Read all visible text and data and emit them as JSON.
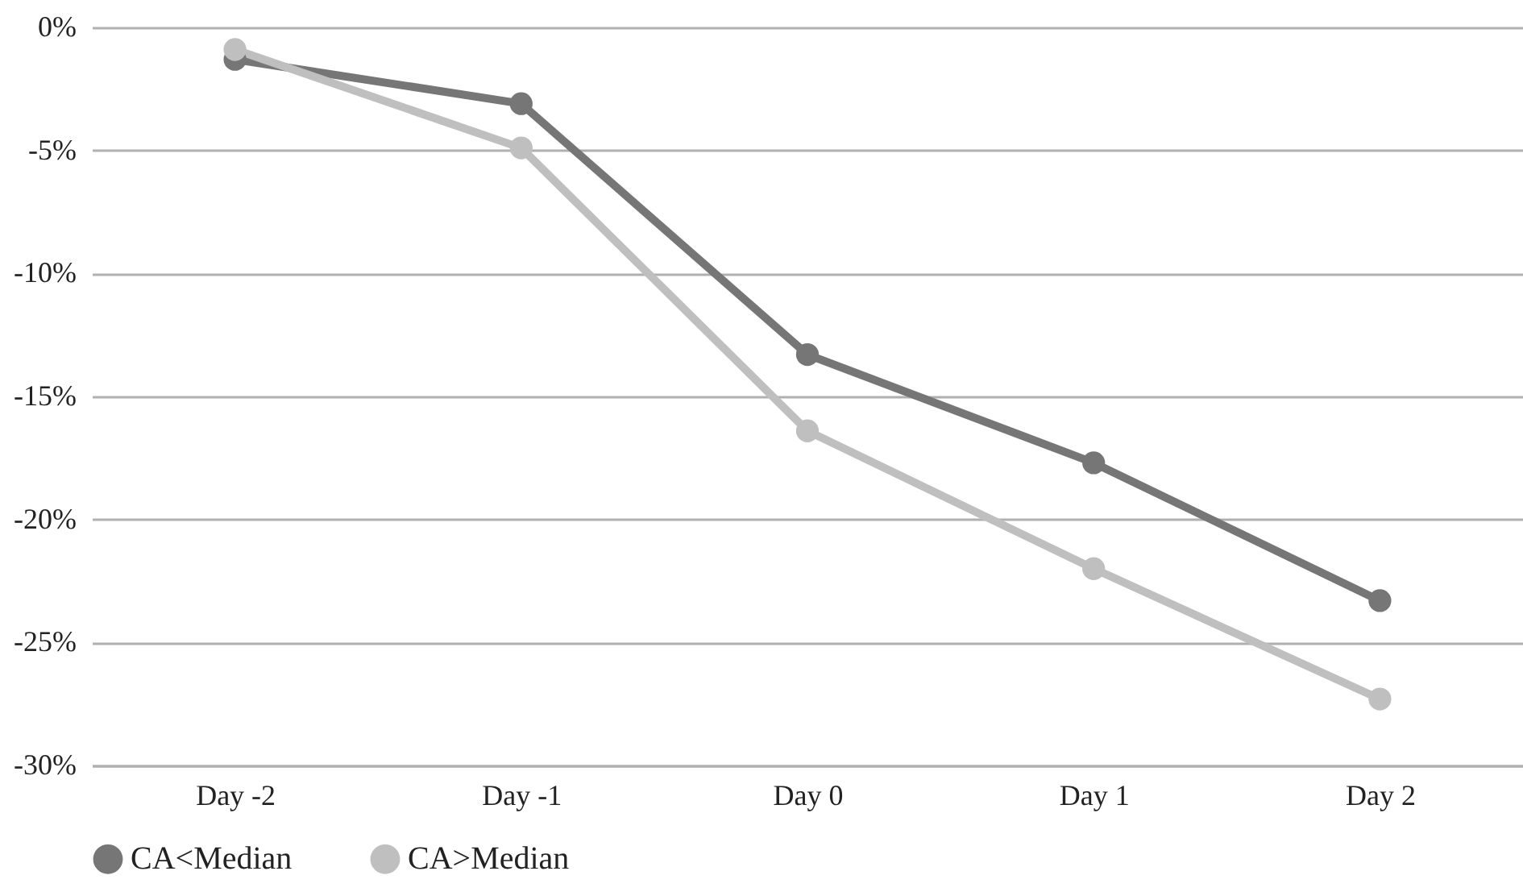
{
  "chart_data": {
    "type": "line",
    "categories": [
      "Day -2",
      "Day -1",
      "Day 0",
      "Day 1",
      "Day 2"
    ],
    "series": [
      {
        "name": "CA<Median",
        "color": "#767676",
        "values": [
          -1.3,
          -3.1,
          -13.3,
          -17.7,
          -23.3
        ]
      },
      {
        "name": "CA>Median",
        "color": "#bfbfbf",
        "values": [
          -0.9,
          -4.9,
          -16.4,
          -22.0,
          -27.3
        ]
      }
    ],
    "ylim": [
      -30,
      0
    ],
    "yticks": [
      {
        "value": 0,
        "label": "0%"
      },
      {
        "value": -5,
        "label": "-5%"
      },
      {
        "value": -10,
        "label": "-10%"
      },
      {
        "value": -15,
        "label": "-15%"
      },
      {
        "value": -20,
        "label": "-20%"
      },
      {
        "value": -25,
        "label": "-25%"
      },
      {
        "value": -30,
        "label": "-30%"
      }
    ],
    "grid": "y",
    "legend": "bottom",
    "marker": "circle",
    "line_style": "solid"
  }
}
